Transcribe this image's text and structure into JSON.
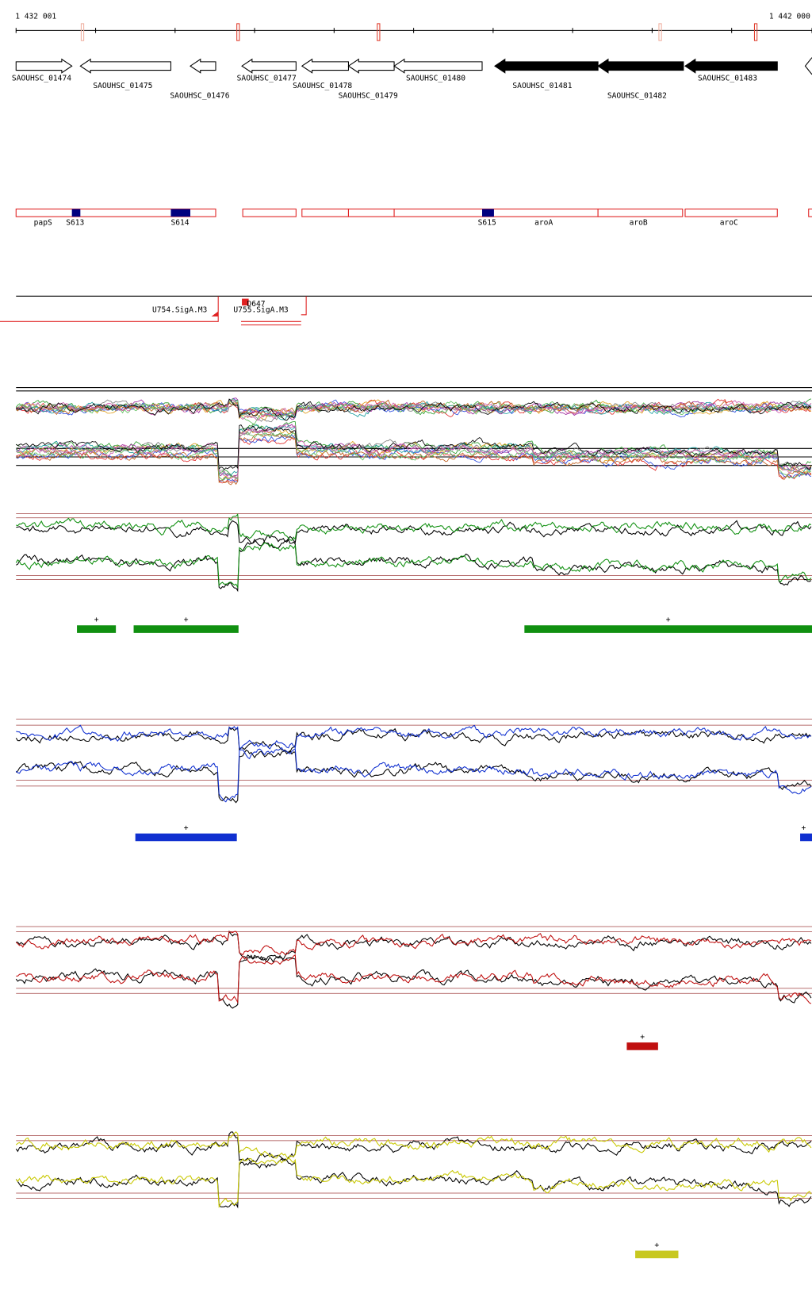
{
  "ruler": {
    "start": "1 432 001",
    "end": "1 442 000"
  },
  "genes": [
    "SAOUHSC_01474",
    "SAOUHSC_01475",
    "SAOUHSC_01476",
    "SAOUHSC_01477",
    "SAOUHSC_01478",
    "SAOUHSC_01479",
    "SAOUHSC_01480",
    "SAOUHSC_01481",
    "SAOUHSC_01482",
    "SAOUHSC_01483"
  ],
  "features": [
    "papS",
    "S613",
    "S614",
    "S615",
    "aroA",
    "aroB",
    "aroC"
  ],
  "promoters": [
    "U754.SigA.M3",
    "U755.SigA.M3",
    "D647"
  ],
  "segments": {
    "green": [
      "+",
      "+",
      "+"
    ],
    "blue": [
      "+",
      "+"
    ],
    "red": [
      "+"
    ],
    "yellow": [
      "+"
    ]
  }
}
